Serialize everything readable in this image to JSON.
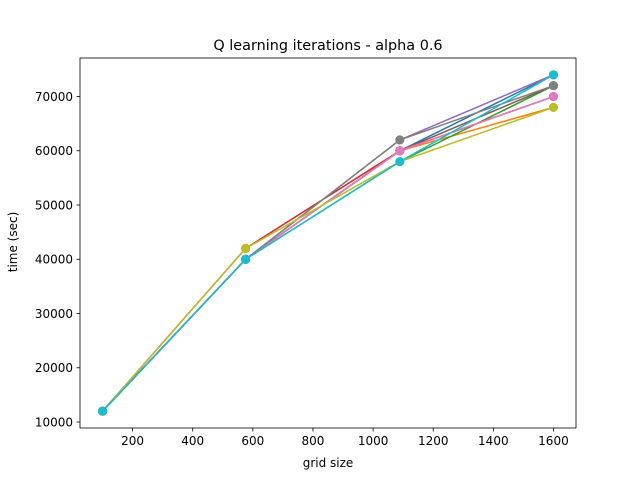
{
  "chart_data": {
    "type": "line",
    "title": "Q learning iterations - alpha 0.6",
    "xlabel": "grid size",
    "ylabel": "time (sec)",
    "xlim": [
      25,
      1675
    ],
    "ylim": [
      8900,
      77100
    ],
    "xticks": [
      200,
      400,
      600,
      800,
      1000,
      1200,
      1400,
      1600
    ],
    "yticks": [
      10000,
      20000,
      30000,
      40000,
      50000,
      60000,
      70000
    ],
    "x": [
      100,
      576,
      1089,
      1600
    ],
    "grid": false,
    "legend": "none",
    "series": [
      {
        "color": "#1f77b4",
        "values": [
          12000,
          40000,
          60000,
          74000
        ]
      },
      {
        "color": "#ff7f0e",
        "values": [
          12000,
          40000,
          60000,
          68000
        ]
      },
      {
        "color": "#2ca02c",
        "values": [
          12000,
          40000,
          58000,
          72000
        ]
      },
      {
        "color": "#d62728",
        "values": [
          12000,
          42000,
          60000,
          70000
        ]
      },
      {
        "color": "#9467bd",
        "values": [
          12000,
          40000,
          62000,
          74000
        ]
      },
      {
        "color": "#8c564b",
        "values": [
          12000,
          40000,
          60000,
          72000
        ]
      },
      {
        "color": "#e377c2",
        "values": [
          12000,
          40000,
          60000,
          70000
        ]
      },
      {
        "color": "#7f7f7f",
        "values": [
          12000,
          40000,
          62000,
          72000
        ]
      },
      {
        "color": "#bcbd22",
        "values": [
          12000,
          42000,
          58000,
          68000
        ]
      },
      {
        "color": "#17becf",
        "values": [
          12000,
          40000,
          58000,
          74000
        ]
      }
    ]
  }
}
